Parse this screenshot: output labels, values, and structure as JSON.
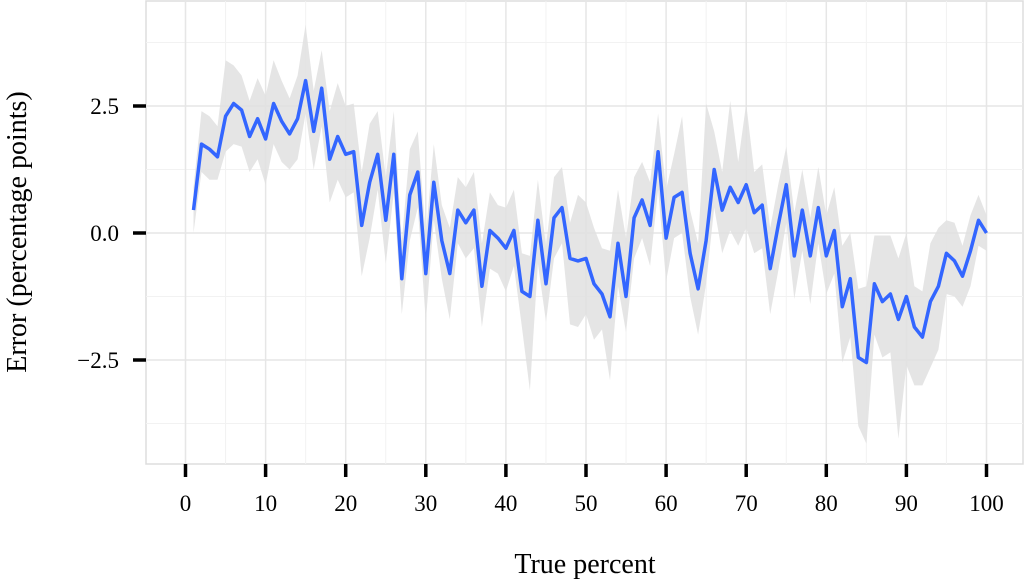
{
  "chart_data": {
    "type": "line",
    "xlabel": "True percent",
    "ylabel": "Error (percentage points)",
    "xlim": [
      0,
      100
    ],
    "ylim": [
      -4.5,
      4.6
    ],
    "xticks": [
      0,
      10,
      20,
      30,
      40,
      50,
      60,
      70,
      80,
      90,
      100
    ],
    "xtick_labels": [
      "0",
      "10",
      "20",
      "30",
      "40",
      "50",
      "60",
      "70",
      "80",
      "90",
      "100"
    ],
    "yticks": [
      -2.5,
      0.0,
      2.5
    ],
    "ytick_labels": [
      "−2.5",
      "0.0",
      "2.5"
    ],
    "grid": true,
    "legend": "none",
    "colors": {
      "line": "#3366ff",
      "band": "#e5e5e5",
      "grid": "#ebebeb",
      "border": "#dddddd"
    },
    "series": [
      {
        "x": [
          1,
          2,
          3,
          4,
          5,
          6,
          7,
          8,
          9,
          10,
          11,
          12,
          13,
          14,
          15,
          16,
          17,
          18,
          19,
          20,
          21,
          22,
          23,
          24,
          25,
          26,
          27,
          28,
          29,
          30,
          31,
          32,
          33,
          34,
          35,
          36,
          37,
          38,
          39,
          40,
          41,
          42,
          43,
          44,
          45,
          46,
          47,
          48,
          49,
          50,
          51,
          52,
          53,
          54,
          55,
          56,
          57,
          58,
          59,
          60,
          61,
          62,
          63,
          64,
          65,
          66,
          67,
          68,
          69,
          70,
          71,
          72,
          73,
          74,
          75,
          76,
          77,
          78,
          79,
          80,
          81,
          82,
          83,
          84,
          85,
          86,
          87,
          88,
          89,
          90,
          91,
          92,
          93,
          94,
          95,
          96,
          97,
          98,
          99,
          100
        ],
        "y": [
          0.45,
          1.75,
          1.65,
          1.5,
          2.3,
          2.55,
          2.42,
          1.9,
          2.25,
          1.85,
          2.55,
          2.2,
          1.95,
          2.25,
          3.0,
          2.0,
          2.85,
          1.45,
          1.9,
          1.55,
          1.6,
          0.15,
          1.0,
          1.55,
          0.25,
          1.55,
          -0.9,
          0.75,
          1.2,
          -0.8,
          1.0,
          -0.15,
          -0.8,
          0.45,
          0.2,
          0.45,
          -1.05,
          0.05,
          -0.1,
          -0.3,
          0.05,
          -1.15,
          -1.25,
          0.25,
          -1.0,
          0.3,
          0.5,
          -0.5,
          -0.55,
          -0.5,
          -1.0,
          -1.2,
          -1.65,
          -0.2,
          -1.25,
          0.3,
          0.65,
          0.15,
          1.6,
          -0.1,
          0.7,
          0.8,
          -0.4,
          -1.1,
          -0.15,
          1.25,
          0.45,
          0.9,
          0.6,
          0.95,
          0.4,
          0.55,
          -0.7,
          0.15,
          0.95,
          -0.45,
          0.45,
          -0.45,
          0.5,
          -0.45,
          0.05,
          -1.45,
          -0.9,
          -2.45,
          -2.55,
          -1.0,
          -1.35,
          -1.2,
          -1.7,
          -1.25,
          -1.85,
          -2.05,
          -1.35,
          -1.05,
          -0.4,
          -0.55,
          -0.85,
          -0.35,
          0.25,
          0.0
        ],
        "lower": [
          0.0,
          1.2,
          1.05,
          1.05,
          1.6,
          1.75,
          1.7,
          1.2,
          1.45,
          0.95,
          1.75,
          1.4,
          1.25,
          1.45,
          2.35,
          1.25,
          2.1,
          0.6,
          1.05,
          0.7,
          0.8,
          -0.85,
          -0.1,
          0.85,
          -0.6,
          0.8,
          -1.6,
          -0.15,
          0.5,
          -1.75,
          0.25,
          -0.9,
          -1.7,
          -0.2,
          -0.5,
          -0.3,
          -1.85,
          -0.7,
          -0.8,
          -1.15,
          -0.65,
          -1.85,
          -3.1,
          -0.6,
          -1.75,
          -0.5,
          -0.2,
          -1.8,
          -1.85,
          -1.6,
          -2.1,
          -1.9,
          -2.9,
          -1.05,
          -1.95,
          -0.5,
          -0.1,
          -0.65,
          0.85,
          -0.95,
          -0.1,
          0.0,
          -1.25,
          -2.0,
          -1.0,
          0.5,
          -0.4,
          0.05,
          -0.25,
          0.1,
          -0.4,
          -0.3,
          -1.6,
          -0.75,
          0.2,
          -1.3,
          -0.35,
          -1.4,
          -0.2,
          -1.2,
          -0.8,
          -2.55,
          -2.05,
          -3.8,
          -4.15,
          -2.0,
          -2.45,
          -2.35,
          -4.05,
          -2.6,
          -3.0,
          -3.0,
          -2.65,
          -2.3,
          -1.2,
          -1.25,
          -1.45,
          -1.05,
          -0.25,
          -0.35
        ],
        "upper": [
          0.9,
          2.4,
          2.3,
          2.1,
          3.4,
          3.3,
          3.1,
          2.6,
          3.05,
          2.7,
          3.4,
          3.0,
          2.65,
          3.1,
          4.1,
          2.8,
          3.6,
          2.4,
          2.95,
          2.5,
          2.55,
          1.2,
          2.15,
          2.4,
          1.1,
          2.4,
          -0.15,
          1.65,
          2.0,
          -0.05,
          1.75,
          0.55,
          0.1,
          1.1,
          0.9,
          1.2,
          -0.2,
          0.8,
          0.55,
          0.5,
          0.85,
          -0.4,
          -0.45,
          1.05,
          -0.25,
          1.1,
          1.3,
          0.2,
          0.75,
          0.6,
          0.1,
          -0.3,
          -0.35,
          0.85,
          -0.1,
          1.1,
          1.4,
          1.0,
          2.35,
          0.85,
          1.55,
          2.3,
          0.45,
          -0.2,
          2.55,
          2.0,
          1.2,
          2.6,
          1.4,
          2.55,
          1.2,
          1.35,
          0.1,
          0.95,
          1.7,
          0.4,
          1.25,
          0.3,
          1.3,
          0.35,
          0.9,
          -0.25,
          0.0,
          -1.1,
          -1.05,
          -0.05,
          -0.05,
          -0.05,
          -0.5,
          0.0,
          -1.05,
          -1.15,
          -0.2,
          0.1,
          0.25,
          0.2,
          -0.25,
          0.35,
          0.75,
          0.35
        ]
      }
    ]
  }
}
